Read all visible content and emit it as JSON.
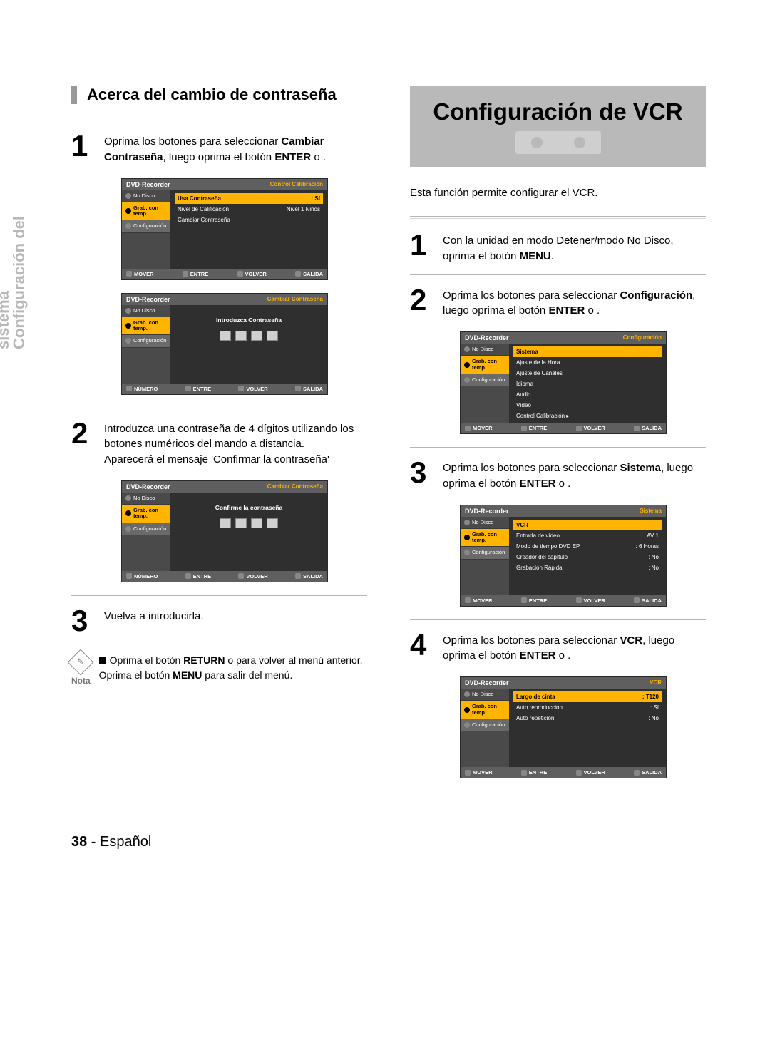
{
  "side_label_line1": "Configuración del",
  "side_label_line2": "sistema",
  "left": {
    "heading": "Acerca del cambio de contraseña",
    "step1": "Oprima los botones        para seleccionar <b>Cambiar Contraseña</b>, luego oprima el botón <b>ENTER</b> o    .",
    "step2": "Introduzca una contraseña de 4 dígitos utilizando los botones numéricos del mando a distancia.<br>Aparecerá el mensaje 'Confirmar la contraseña'",
    "step3": "Vuelva a introducirla.",
    "note_label": "Nota",
    "note_line1": "Oprima el botón <b>RETURN</b> o     para volver al menú anterior.",
    "note_line2": "Oprima el botón <b>MENU</b> para salir del menú."
  },
  "right": {
    "banner_title": "Configuración de VCR",
    "intro": "Esta función permite configurar el VCR.",
    "step1": "Con la unidad en modo Detener/modo No Disco, oprima el botón <b>MENU</b>.",
    "step2": "Oprima los botones        para seleccionar <b>Configuración</b>, luego oprima el botón <b>ENTER</b> o    .",
    "step3": "Oprima los botones        para seleccionar <b>Sistema</b>, luego oprima el botón <b>ENTER</b> o    .",
    "step4": "Oprima los botones        para seleccionar <b>VCR</b>, luego oprima el botón <b>ENTER</b> o    ."
  },
  "osd": {
    "common": {
      "device": "DVD-Recorder",
      "sidebar": {
        "no_disco": "No Disco",
        "grab": "Grab.\ncon temp.",
        "config": "Configuración"
      },
      "footer": {
        "mover": "MOVER",
        "entre": "ENTRE",
        "volver": "VOLVER",
        "salida": "SALIDA",
        "numero": "NÚMERO"
      }
    },
    "screen_control_calib": {
      "crumb": "Control Calibración",
      "rows": [
        {
          "label": "Usa Contraseña",
          "val": ": Sí",
          "hl": true
        },
        {
          "label": "Nivel de Calificación",
          "val": ": Nivel 1 Niños"
        },
        {
          "label": "Cambiar Contraseña",
          "val": ""
        }
      ]
    },
    "screen_change_pw1": {
      "crumb": "Cambiar Contraseña",
      "prompt": "Introduzca Contraseña"
    },
    "screen_change_pw2": {
      "crumb": "Cambiar Contraseña",
      "prompt": "Confirme la contraseña"
    },
    "screen_config": {
      "crumb": "Configuración",
      "rows": [
        {
          "label": "Sistema",
          "hl": true
        },
        {
          "label": "Ajuste de la Hora"
        },
        {
          "label": "Ajuste de Canales"
        },
        {
          "label": "Idioma"
        },
        {
          "label": "Audio"
        },
        {
          "label": "Vídeo"
        },
        {
          "label": "Control Calibración ▸"
        }
      ]
    },
    "screen_sistema": {
      "crumb": "Sistema",
      "rows": [
        {
          "label": "VCR",
          "val": "",
          "hl": true
        },
        {
          "label": "Entrada de vídeo",
          "val": ": AV 1"
        },
        {
          "label": "Modo de  tiempo DVD EP",
          "val": ": 6 Horas"
        },
        {
          "label": "Creador del capítulo",
          "val": ": No"
        },
        {
          "label": "Grabación Rápida",
          "val": ": No"
        }
      ]
    },
    "screen_vcr": {
      "crumb": "VCR",
      "rows": [
        {
          "label": "Largo de cinta",
          "val": ": T120",
          "hl": true
        },
        {
          "label": "Auto reproducción",
          "val": ": Sí"
        },
        {
          "label": "Auto repetición",
          "val": ": No"
        }
      ]
    }
  },
  "footer": {
    "page_no": "38",
    "lang": "Español"
  }
}
